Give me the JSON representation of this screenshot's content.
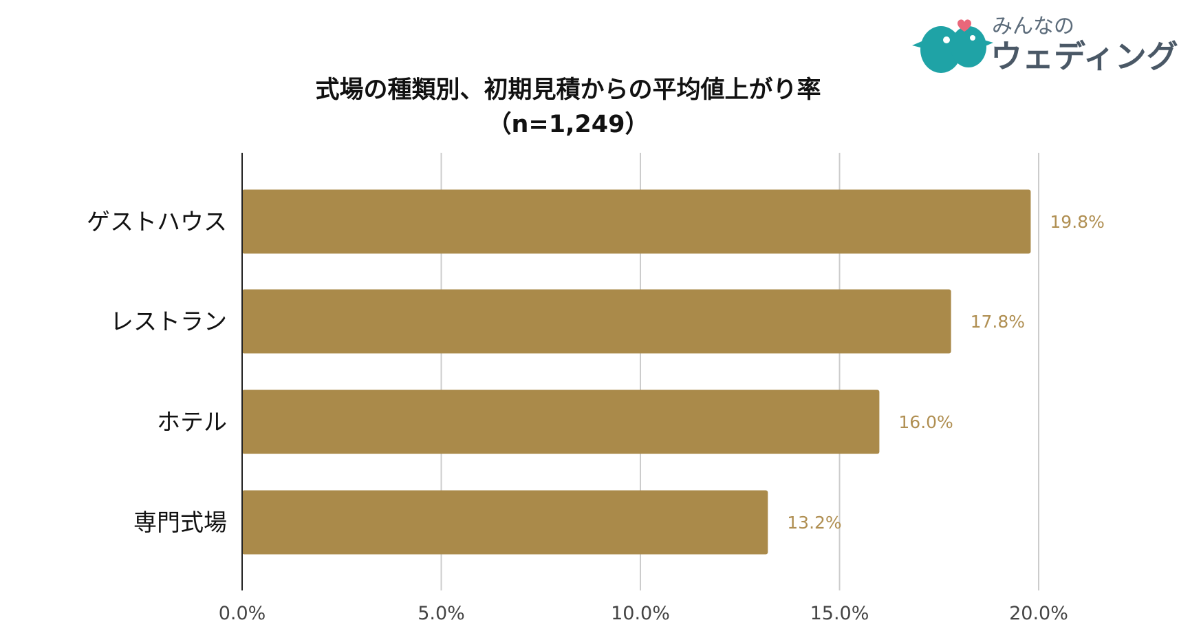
{
  "logo": {
    "line1": "みんなの",
    "line2": "ウェディング",
    "colors": {
      "bird": "#1fa3a6",
      "heart": "#e9677a",
      "text": "#4a5866"
    }
  },
  "chart_data": {
    "type": "bar",
    "orientation": "horizontal",
    "title": "式場の種類別、初期見積からの平均値上がり率",
    "subtitle": "（n=1,249）",
    "categories": [
      "ゲストハウス",
      "レストラン",
      "ホテル",
      "専門式場"
    ],
    "values": [
      19.8,
      17.8,
      16.0,
      13.2
    ],
    "data_labels": [
      "19.8%",
      "17.8%",
      "16.0%",
      "13.2%"
    ],
    "xlim": [
      0,
      20
    ],
    "xticks": [
      0,
      5,
      10,
      15,
      20
    ],
    "xtick_labels": [
      "0.0%",
      "5.0%",
      "10.0%",
      "15.0%",
      "20.0%"
    ],
    "grid": true,
    "legend": "none",
    "bar_color": "#aa8a4a",
    "label_color": "#b08f52",
    "gridline_color": "#cccccc"
  }
}
